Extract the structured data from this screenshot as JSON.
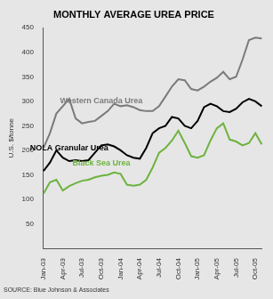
{
  "chart_data": {
    "type": "line",
    "title": "MONTHLY AVERAGE UREA PRICE",
    "y_label": "U.S. $/tonne",
    "source": "SOURCE: Blue Johnson & Associates",
    "categories": [
      "Jan-03",
      null,
      null,
      "Apr-03",
      null,
      null,
      "Jul-03",
      null,
      null,
      "Oct-03",
      null,
      null,
      "Jan-04",
      null,
      null,
      "Apr-04",
      null,
      null,
      "Jul-04",
      null,
      null,
      "Oct-04",
      null,
      null,
      "Jan-05",
      null,
      null,
      "Apr-05",
      null,
      null,
      "Jul-05",
      null,
      null,
      "Oct-05",
      null
    ],
    "series": [
      {
        "name": "Western Canada Urea",
        "color": "#7a7a7a",
        "values": [
          205,
          235,
          275,
          290,
          305,
          265,
          255,
          258,
          260,
          270,
          280,
          295,
          290,
          292,
          288,
          282,
          280,
          280,
          290,
          310,
          330,
          345,
          343,
          325,
          322,
          330,
          340,
          348,
          360,
          345,
          350,
          385,
          425,
          430,
          428
        ]
      },
      {
        "name": "NOLA Granular Urea",
        "color": "#000000",
        "values": [
          158,
          175,
          200,
          185,
          178,
          180,
          178,
          180,
          195,
          210,
          212,
          208,
          200,
          190,
          185,
          183,
          205,
          235,
          245,
          250,
          268,
          265,
          250,
          245,
          260,
          288,
          295,
          290,
          280,
          278,
          285,
          298,
          305,
          300,
          290
        ]
      },
      {
        "name": "Black Sea Urea",
        "color": "#6cb33e",
        "values": [
          112,
          135,
          140,
          118,
          127,
          133,
          138,
          140,
          145,
          148,
          150,
          155,
          152,
          130,
          128,
          130,
          140,
          165,
          195,
          205,
          220,
          240,
          215,
          188,
          185,
          190,
          220,
          245,
          255,
          222,
          218,
          210,
          215,
          235,
          212
        ]
      }
    ],
    "ylim": [
      0,
      450
    ],
    "yticks": [
      50,
      100,
      150,
      200,
      250,
      300,
      350,
      400,
      450
    ],
    "grid": false
  }
}
